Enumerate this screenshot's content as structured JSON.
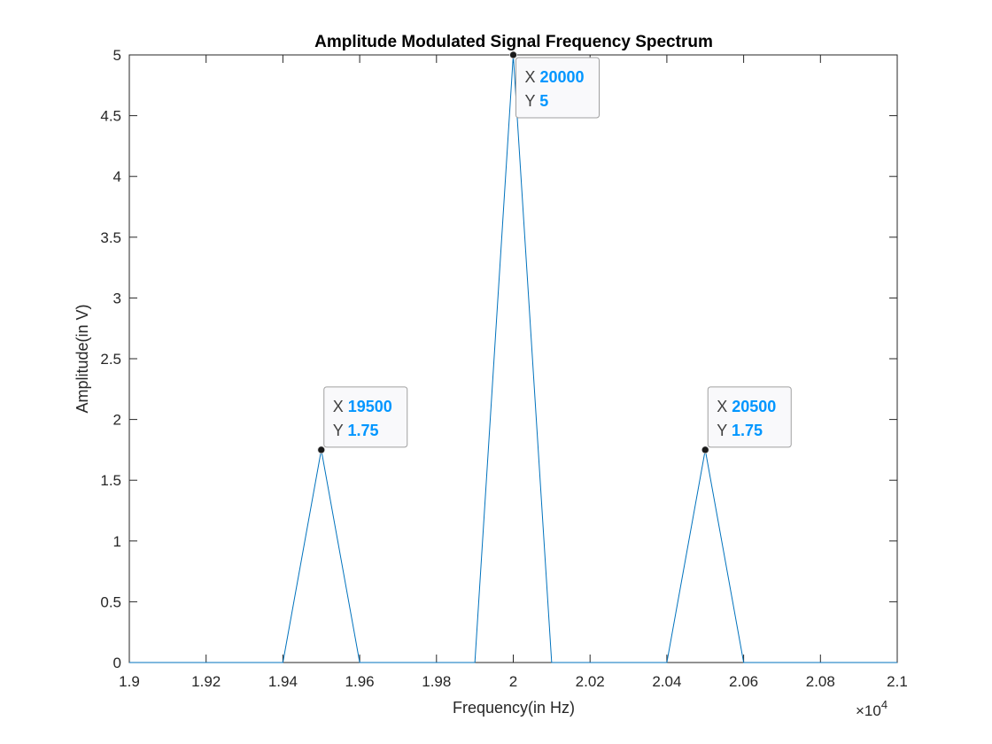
{
  "chart_data": {
    "type": "line",
    "title": "Amplitude Modulated Signal Frequency Spectrum",
    "xlabel": "Frequency(in Hz)",
    "ylabel": "Amplitude(in V)",
    "x_exponent_label": "×10",
    "x_exponent_power": "4",
    "xlim": [
      19000,
      21000
    ],
    "ylim": [
      0,
      5
    ],
    "x_ticks": [
      19000,
      19200,
      19400,
      19600,
      19800,
      20000,
      20200,
      20400,
      20600,
      20800,
      21000
    ],
    "x_tick_labels": [
      "1.9",
      "1.92",
      "1.94",
      "1.96",
      "1.98",
      "2",
      "2.02",
      "2.04",
      "2.06",
      "2.08",
      "2.1"
    ],
    "y_ticks": [
      0,
      0.5,
      1,
      1.5,
      2,
      2.5,
      3,
      3.5,
      4,
      4.5,
      5
    ],
    "y_tick_labels": [
      "0",
      "0.5",
      "1",
      "1.5",
      "2",
      "2.5",
      "3",
      "3.5",
      "4",
      "4.5",
      "5"
    ],
    "grid": false,
    "series": [
      {
        "color": "#0072BD",
        "x": [
          19000,
          19400,
          19500,
          19600,
          19900,
          20000,
          20100,
          20400,
          20500,
          20600,
          21000
        ],
        "y": [
          0,
          0,
          1.75,
          0,
          0,
          5,
          0,
          0,
          1.75,
          0,
          0
        ]
      }
    ],
    "datatips": [
      {
        "x": 19500,
        "y": 1.75,
        "x_label": "X",
        "y_label": "Y",
        "x_text": "19500",
        "y_text": "1.75",
        "placement": "upper-right"
      },
      {
        "x": 20000,
        "y": 5,
        "x_label": "X",
        "y_label": "Y",
        "x_text": "20000",
        "y_text": "5",
        "placement": "lower-right"
      },
      {
        "x": 20500,
        "y": 1.75,
        "x_label": "X",
        "y_label": "Y",
        "x_text": "20500",
        "y_text": "1.75",
        "placement": "upper-right"
      }
    ],
    "datatip_value_color": "#0096FF"
  }
}
